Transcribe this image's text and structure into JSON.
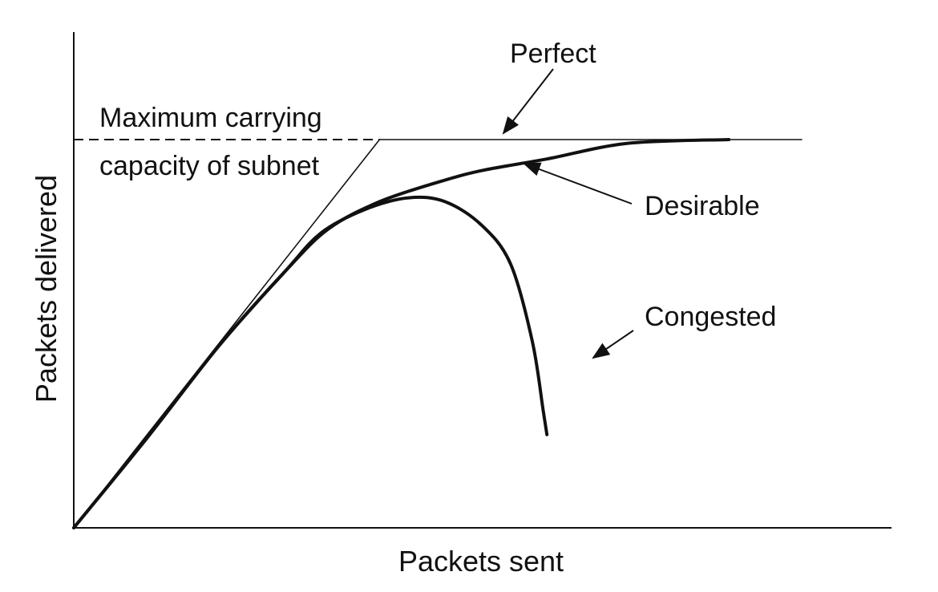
{
  "chart_data": {
    "type": "line",
    "title": "",
    "xlabel": "Packets sent",
    "ylabel": "Packets delivered",
    "xlim": [
      0,
      1000
    ],
    "ylim": [
      0,
      100
    ],
    "grid": false,
    "capacity": {
      "label_line1": "Maximum carrying",
      "label_line2": "capacity of subnet",
      "value": 100
    },
    "series": [
      {
        "name": "Perfect",
        "x": [
          0,
          420,
          1000
        ],
        "y": [
          0,
          100,
          100
        ]
      },
      {
        "name": "Desirable",
        "x": [
          0,
          100,
          200,
          290,
          350,
          420,
          500,
          560,
          650,
          760,
          900
        ],
        "y": [
          0,
          23,
          47,
          66,
          77,
          84,
          89,
          92,
          95,
          99,
          100
        ]
      },
      {
        "name": "Congested",
        "x": [
          0,
          100,
          200,
          290,
          340,
          400,
          460,
          510,
          560,
          600,
          630,
          645,
          650
        ],
        "y": [
          0,
          23,
          47,
          66,
          76,
          82,
          85,
          84,
          78,
          68,
          48,
          30,
          24
        ]
      }
    ],
    "annotations": [
      {
        "text": "Perfect",
        "series": "Perfect"
      },
      {
        "text": "Desirable",
        "series": "Desirable"
      },
      {
        "text": "Congested",
        "series": "Congested"
      }
    ]
  }
}
